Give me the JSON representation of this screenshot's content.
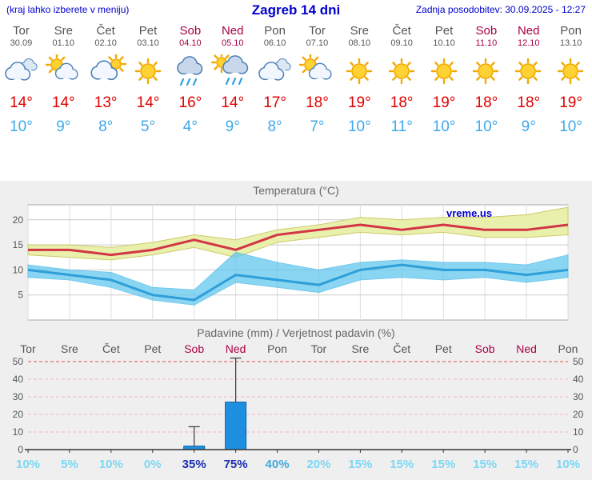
{
  "header": {
    "left_note": "(kraj lahko izberete v meniju)",
    "title": "Zagreb 14 dni",
    "updated": "Zadnja posodobitev: 30.09.2025 - 12:27"
  },
  "forecast": {
    "days": [
      {
        "name": "Tor",
        "date": "30.09",
        "weekend": false,
        "icon": "cloudy",
        "tmax": "14°",
        "tmin": "10°"
      },
      {
        "name": "Sre",
        "date": "01.10",
        "weekend": false,
        "icon": "partly-cloudy",
        "tmax": "14°",
        "tmin": "9°"
      },
      {
        "name": "Čet",
        "date": "02.10",
        "weekend": false,
        "icon": "mostly-cloudy",
        "tmax": "13°",
        "tmin": "8°"
      },
      {
        "name": "Pet",
        "date": "03.10",
        "weekend": false,
        "icon": "sunny",
        "tmax": "14°",
        "tmin": "5°"
      },
      {
        "name": "Sob",
        "date": "04.10",
        "weekend": true,
        "icon": "rain",
        "tmax": "16°",
        "tmin": "4°"
      },
      {
        "name": "Ned",
        "date": "05.10",
        "weekend": true,
        "icon": "rain-sun",
        "tmax": "14°",
        "tmin": "9°"
      },
      {
        "name": "Pon",
        "date": "06.10",
        "weekend": false,
        "icon": "cloudy",
        "tmax": "17°",
        "tmin": "8°"
      },
      {
        "name": "Tor",
        "date": "07.10",
        "weekend": false,
        "icon": "partly-cloudy",
        "tmax": "18°",
        "tmin": "7°"
      },
      {
        "name": "Sre",
        "date": "08.10",
        "weekend": false,
        "icon": "sunny",
        "tmax": "19°",
        "tmin": "10°"
      },
      {
        "name": "Čet",
        "date": "09.10",
        "weekend": false,
        "icon": "sunny",
        "tmax": "18°",
        "tmin": "11°"
      },
      {
        "name": "Pet",
        "date": "10.10",
        "weekend": false,
        "icon": "sunny",
        "tmax": "19°",
        "tmin": "10°"
      },
      {
        "name": "Sob",
        "date": "11.10",
        "weekend": true,
        "icon": "sunny",
        "tmax": "18°",
        "tmin": "10°"
      },
      {
        "name": "Ned",
        "date": "12.10",
        "weekend": true,
        "icon": "sunny",
        "tmax": "18°",
        "tmin": "9°"
      },
      {
        "name": "Pon",
        "date": "13.10",
        "weekend": false,
        "icon": "sunny",
        "tmax": "19°",
        "tmin": "10°"
      }
    ]
  },
  "chart_data": [
    {
      "type": "area",
      "title": "Temperatura (°C)",
      "watermark": "vreme.us",
      "ylim": [
        0,
        23
      ],
      "yticks": [
        5,
        10,
        15,
        20
      ],
      "categories": [
        "Tor",
        "Sre",
        "Čet",
        "Pet",
        "Sob",
        "Ned",
        "Pon",
        "Tor",
        "Sre",
        "Čet",
        "Pet",
        "Sob",
        "Ned",
        "Pon"
      ],
      "series": [
        {
          "name": "tmax",
          "values": [
            14,
            14,
            13,
            14,
            16,
            14,
            17,
            18,
            19,
            18,
            19,
            18,
            18,
            19
          ]
        },
        {
          "name": "tmax_hi",
          "values": [
            15,
            15,
            14.5,
            15.5,
            17,
            16,
            18,
            19,
            20.5,
            20,
            20.5,
            20.5,
            21,
            22.5
          ]
        },
        {
          "name": "tmax_lo",
          "values": [
            13,
            12.5,
            12,
            13,
            14.5,
            12.5,
            15.5,
            16.5,
            17.5,
            17,
            17.5,
            16.5,
            16.5,
            17
          ]
        },
        {
          "name": "tmin",
          "values": [
            10,
            9,
            8,
            5,
            4,
            9,
            8,
            7,
            10,
            11,
            10,
            10,
            9,
            10
          ]
        },
        {
          "name": "tmin_hi",
          "values": [
            11,
            10,
            9.5,
            6.5,
            6,
            13.5,
            11.5,
            10,
            11.5,
            12,
            11.5,
            11.5,
            11,
            13
          ]
        },
        {
          "name": "tmin_lo",
          "values": [
            8.5,
            8,
            6.5,
            4,
            3,
            7.5,
            6.5,
            5.5,
            8,
            8.5,
            8,
            8.5,
            7.5,
            8.5
          ]
        }
      ]
    },
    {
      "type": "bar",
      "title": "Padavine (mm) / Verjetnost padavin (%)",
      "categories": [
        "Tor",
        "Sre",
        "Čet",
        "Pet",
        "Sob",
        "Ned",
        "Pon",
        "Tor",
        "Sre",
        "Čet",
        "Pet",
        "Sob",
        "Ned",
        "Pon"
      ],
      "weekend_indices": [
        4,
        5,
        11,
        12
      ],
      "values": [
        0,
        0,
        0,
        0,
        2,
        27,
        0,
        0,
        0,
        0,
        0,
        0,
        0,
        0
      ],
      "whisker_hi": [
        null,
        null,
        null,
        null,
        13,
        52,
        null,
        null,
        null,
        null,
        null,
        null,
        null,
        null
      ],
      "whisker_lo": [
        null,
        null,
        null,
        null,
        0,
        8,
        null,
        null,
        null,
        null,
        null,
        null,
        null,
        null
      ],
      "ylim": [
        0,
        52
      ],
      "yticks": [
        0,
        10,
        20,
        30,
        40,
        50
      ],
      "probabilities": [
        "10%",
        "5%",
        "10%",
        "0%",
        "35%",
        "75%",
        "40%",
        "20%",
        "15%",
        "15%",
        "15%",
        "15%",
        "15%",
        "10%"
      ],
      "probability_levels": [
        "low",
        "low",
        "low",
        "low",
        "high",
        "high",
        "mid",
        "low",
        "low",
        "low",
        "low",
        "low",
        "low",
        "low"
      ]
    }
  ],
  "colors": {
    "accent_blue": "#0000CC",
    "weekend": "#AA0044",
    "tmax": "#E00000",
    "tmin": "#3FA9E8",
    "temp_line_max": "#D23545",
    "temp_line_min": "#2E9FD9",
    "temp_band_max": "#E9F0AC",
    "temp_band_max_edge": "#CFC96A",
    "temp_band_min": "#63C7EE",
    "temp_band_min_edge": "#45B8E8",
    "bar": "#1E8FE0",
    "bar_edge": "#0E62A8",
    "grid_red": "#E05050",
    "grid_pink": "#F2B9B9",
    "prob_low": "#7BD7F4",
    "prob_mid": "#3FA9E0",
    "prob_high": "#1A2EAE"
  }
}
